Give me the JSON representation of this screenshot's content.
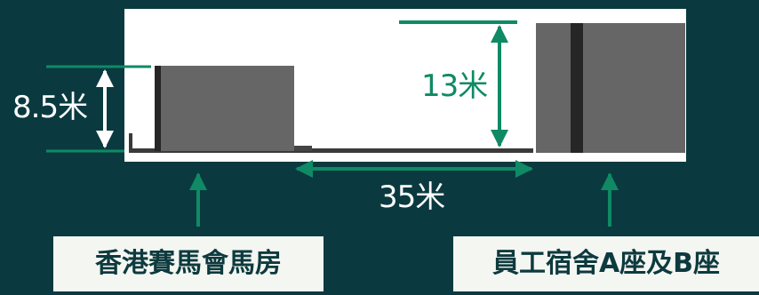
{
  "dimensions": {
    "left_height": "8.5米",
    "right_height": "13米",
    "distance": "35米"
  },
  "labels": {
    "left_building": "香港賽馬會馬房",
    "right_building": "員工宿舍A座及B座"
  },
  "colors": {
    "background": "#0a3a3f",
    "panel": "#ffffff",
    "building": "#666666",
    "building_dark": "#262626",
    "arrow_green": "#0f8a64",
    "label_box": "#f4f6f2",
    "label_text": "#0d3a3e"
  }
}
